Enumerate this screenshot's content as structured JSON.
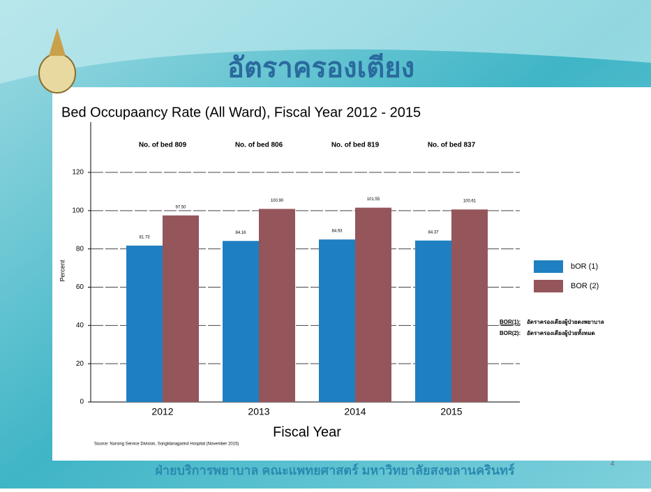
{
  "slide": {
    "title": "อัตราครองเตียง",
    "footer": "ฝ่ายบริการพยาบาล คณะแพทยศาสตร์ มหาวิทยาลัยสงขลานครินทร์",
    "page": "4"
  },
  "chart_data": {
    "type": "bar",
    "title": "Bed Occupaancy Rate (All Ward), Fiscal Year 2012 - 2015",
    "xlabel": "Fiscal Year",
    "ylabel": "Percent",
    "categories": [
      "2012",
      "2013",
      "2014",
      "2015"
    ],
    "annotations": [
      "No. of bed 809",
      "No. of bed 806",
      "No. of bed 819",
      "No. of bed 837"
    ],
    "series": [
      {
        "name": "bOR (1)",
        "color": "#1f80c1",
        "values": [
          81.73,
          84.16,
          84.93,
          84.37
        ],
        "value_labels": [
          "81.73",
          "84.16",
          "84.93",
          "84.37"
        ]
      },
      {
        "name": "BOR (2)",
        "color": "#94555b",
        "values": [
          97.5,
          100.9,
          101.55,
          100.61
        ],
        "value_labels": [
          "97.50",
          "100.90",
          "101.55",
          "100.61"
        ]
      }
    ],
    "ylim": [
      0,
      120
    ],
    "yticks": [
      0,
      20,
      40,
      60,
      80,
      100,
      120
    ],
    "grid": true,
    "legend": "right",
    "notes": [
      {
        "key": "BOR(1):",
        "text": "อัตราครองเตียงผู้ป่วยตงพยาบาล"
      },
      {
        "key": "BOR(2):",
        "text": "อัตราครองเตียงผู้ป่วยทั้งหมด"
      }
    ],
    "source": "Source: Nursing Service Division, Songklanagarind Hospital (November 2015)"
  }
}
